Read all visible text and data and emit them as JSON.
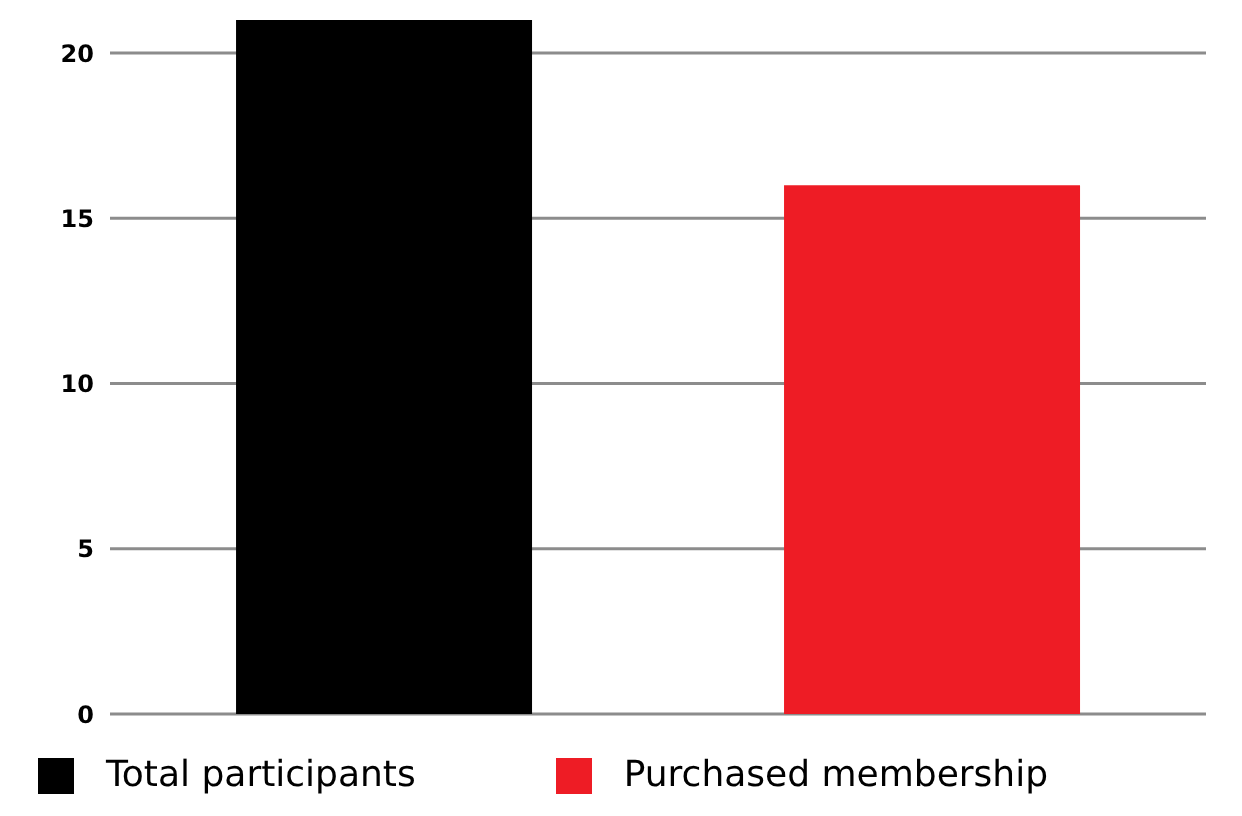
{
  "chart_data": {
    "type": "bar",
    "categories": [
      null,
      null
    ],
    "series": [
      {
        "name": "Total participants",
        "color": "#000000",
        "values": [
          21,
          null
        ]
      },
      {
        "name": "Purchased membership",
        "color": "#ee1c25",
        "values": [
          null,
          16
        ]
      }
    ],
    "ylim": [
      0,
      21
    ],
    "yticks": [
      0,
      5,
      10,
      15,
      20
    ],
    "grid": "y",
    "legend": "bottom"
  }
}
